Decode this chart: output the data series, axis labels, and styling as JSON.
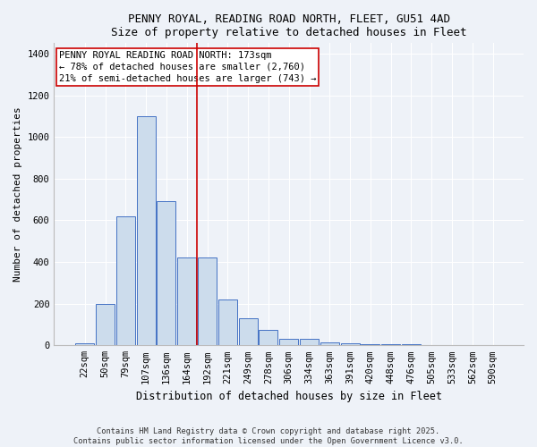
{
  "title": "PENNY ROYAL, READING ROAD NORTH, FLEET, GU51 4AD",
  "subtitle": "Size of property relative to detached houses in Fleet",
  "xlabel": "Distribution of detached houses by size in Fleet",
  "ylabel": "Number of detached properties",
  "categories": [
    "22sqm",
    "50sqm",
    "79sqm",
    "107sqm",
    "136sqm",
    "164sqm",
    "192sqm",
    "221sqm",
    "249sqm",
    "278sqm",
    "306sqm",
    "334sqm",
    "363sqm",
    "391sqm",
    "420sqm",
    "448sqm",
    "476sqm",
    "505sqm",
    "533sqm",
    "562sqm",
    "590sqm"
  ],
  "values": [
    10,
    200,
    620,
    1100,
    690,
    420,
    420,
    220,
    130,
    75,
    30,
    30,
    15,
    10,
    5,
    5,
    5,
    2,
    1,
    1,
    1
  ],
  "vline_index": 6,
  "vline_color": "#cc0000",
  "bar_color": "#ccdcec",
  "bar_edge_color": "#4472c4",
  "ylim": [
    0,
    1450
  ],
  "yticks": [
    0,
    200,
    400,
    600,
    800,
    1000,
    1200,
    1400
  ],
  "annotation_text": "PENNY ROYAL READING ROAD NORTH: 173sqm\n← 78% of detached houses are smaller (2,760)\n21% of semi-detached houses are larger (743) →",
  "footer": "Contains HM Land Registry data © Crown copyright and database right 2025.\nContains public sector information licensed under the Open Government Licence v3.0.",
  "background_color": "#eef2f8",
  "plot_bg_color": "#eef2f8",
  "grid_color": "#ffffff",
  "title_fontsize": 9,
  "subtitle_fontsize": 9,
  "axis_label_fontsize": 8,
  "tick_fontsize": 7.5,
  "annotation_fontsize": 7.5
}
